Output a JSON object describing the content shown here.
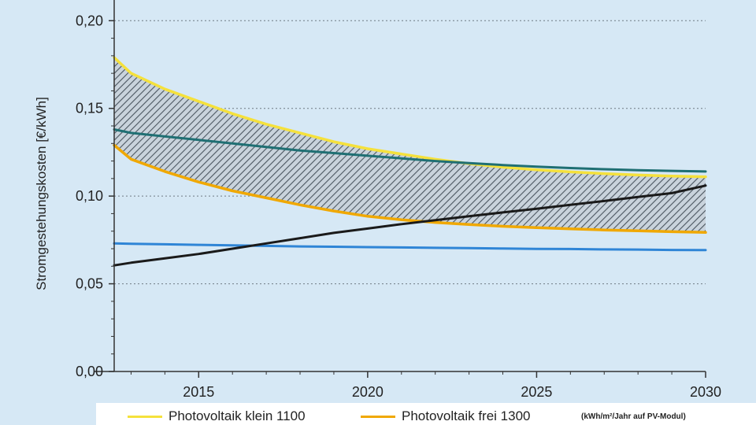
{
  "chart_data": {
    "type": "line",
    "ylabel": "Stromgestehungskosten [€/kWh]",
    "xlim": [
      2012.5,
      2030
    ],
    "ylim": [
      0,
      0.21
    ],
    "x_ticks": [
      2015,
      2020,
      2025,
      2030
    ],
    "x_tick_labels": [
      "2015",
      "2020",
      "2025",
      "2030"
    ],
    "y_ticks": [
      0,
      0.05,
      0.1,
      0.15,
      0.2
    ],
    "y_tick_labels": [
      "0,00",
      "0,05",
      "0,10",
      "0,15",
      "0,20"
    ],
    "grid": "horizontal dashed",
    "x": [
      2012.5,
      2013,
      2014,
      2015,
      2016,
      2017,
      2018,
      2019,
      2020,
      2021,
      2022,
      2023,
      2024,
      2025,
      2026,
      2027,
      2028,
      2029,
      2030
    ],
    "series": [
      {
        "name": "Photovoltaik klein 1100",
        "color": "#f5e13c",
        "values": [
          0.179,
          0.17,
          0.161,
          0.154,
          0.147,
          0.141,
          0.136,
          0.131,
          0.127,
          0.124,
          0.121,
          0.1185,
          0.1165,
          0.115,
          0.1138,
          0.1128,
          0.112,
          0.1114,
          0.111
        ]
      },
      {
        "name": "Photovoltaik  frei 1300",
        "color": "#f0a800",
        "values": [
          0.129,
          0.121,
          0.114,
          0.108,
          0.103,
          0.099,
          0.095,
          0.0915,
          0.0885,
          0.0865,
          0.085,
          0.0838,
          0.0828,
          0.082,
          0.0813,
          0.0807,
          0.0802,
          0.0797,
          0.0793
        ]
      },
      {
        "color": "#1f6f73",
        "values": [
          0.138,
          0.136,
          0.134,
          0.132,
          0.13,
          0.128,
          0.126,
          0.1245,
          0.123,
          0.1215,
          0.12,
          0.1188,
          0.1177,
          0.1168,
          0.116,
          0.1153,
          0.1148,
          0.1144,
          0.114
        ]
      },
      {
        "color": "#2f85d6",
        "values": [
          0.073,
          0.0728,
          0.0725,
          0.0722,
          0.0719,
          0.0716,
          0.0713,
          0.0711,
          0.0709,
          0.0707,
          0.0705,
          0.0703,
          0.0701,
          0.0699,
          0.0698,
          0.0696,
          0.0695,
          0.0693,
          0.0692
        ]
      },
      {
        "color": "#1a1a1a",
        "values": [
          0.0605,
          0.062,
          0.0645,
          0.067,
          0.07,
          0.073,
          0.076,
          0.079,
          0.0815,
          0.084,
          0.0863,
          0.0885,
          0.0907,
          0.0928,
          0.095,
          0.0972,
          0.0995,
          0.1017,
          0.106
        ]
      }
    ],
    "shaded_band": {
      "between": [
        "Photovoltaik klein 1100",
        "Photovoltaik  frei 1300"
      ],
      "pattern": "diagonal hatch"
    },
    "legend": {
      "placement": "bottom",
      "items": [
        {
          "label": "Photovoltaik klein 1100",
          "color": "#f5e13c"
        },
        {
          "label": "Photovoltaik  frei 1300",
          "color": "#f0a800"
        }
      ],
      "note": "(kWh/m²/Jahr auf PV-Modul)"
    }
  }
}
